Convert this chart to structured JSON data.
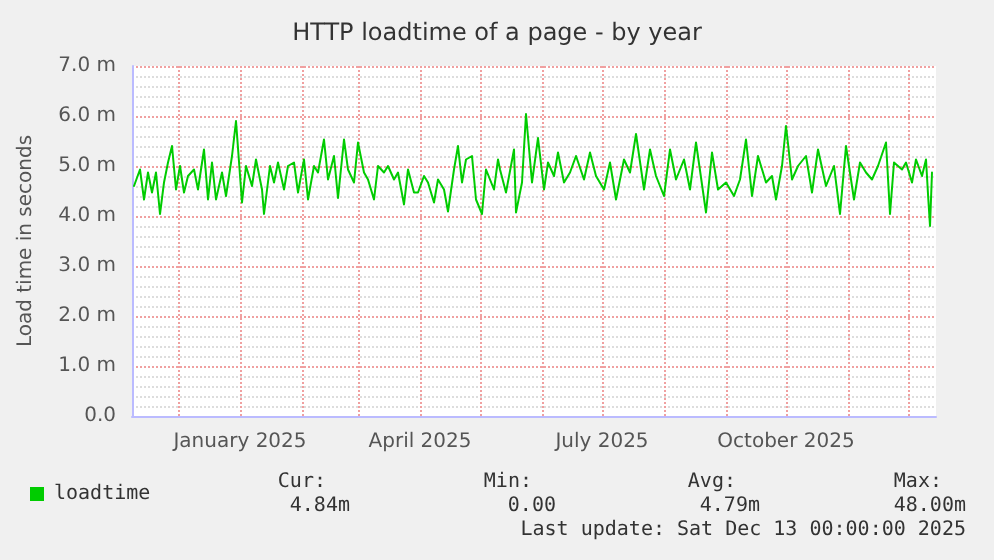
{
  "chart_data": {
    "type": "line",
    "title": "HTTP loadtime of a page - by year",
    "ylabel": "Load time in seconds",
    "xlim": [
      "2024-11-08",
      "2025-12-15"
    ],
    "xticks": [
      {
        "value": "2024-12-01",
        "label": null
      },
      {
        "value": "2025-01-01",
        "label": "January 2025"
      },
      {
        "value": "2025-02-01",
        "label": null
      },
      {
        "value": "2025-03-01",
        "label": null
      },
      {
        "value": "2025-04-01",
        "label": "April 2025"
      },
      {
        "value": "2025-05-01",
        "label": null
      },
      {
        "value": "2025-06-01",
        "label": null
      },
      {
        "value": "2025-07-01",
        "label": "July 2025"
      },
      {
        "value": "2025-08-01",
        "label": null
      },
      {
        "value": "2025-09-01",
        "label": null
      },
      {
        "value": "2025-10-01",
        "label": "October 2025"
      },
      {
        "value": "2025-11-01",
        "label": null
      },
      {
        "value": "2025-12-01",
        "label": null
      }
    ],
    "ylim": [
      0,
      7
    ],
    "yticks": [
      {
        "value": 0,
        "label": "0.0"
      },
      {
        "value": 1,
        "label": "1.0 m"
      },
      {
        "value": 2,
        "label": "2.0 m"
      },
      {
        "value": 3,
        "label": "3.0 m"
      },
      {
        "value": 4,
        "label": "4.0 m"
      },
      {
        "value": 5,
        "label": "5.0 m"
      },
      {
        "value": 6,
        "label": "6.0 m"
      },
      {
        "value": 7,
        "label": "7.0 m"
      }
    ],
    "grid": true,
    "legend": "bottom left",
    "marker": "none",
    "line_style": "solid",
    "annotations": [
      "Cur:",
      "Min:",
      "Avg:",
      "Max:",
      "4.84m",
      "0.00",
      "4.79m",
      "48.00m",
      "Last update: Sat Dec 13 00:00:00 2025"
    ],
    "series": [
      {
        "name": "loadtime",
        "color": "#00cc00",
        "x": [
          "2024-11-09",
          "2024-11-12",
          "2024-11-14",
          "2024-11-16",
          "2024-11-18",
          "2024-11-20",
          "2024-11-22",
          "2024-11-24",
          "2024-11-26",
          "2024-11-28",
          "2024-11-30",
          "2024-12-02",
          "2024-12-04",
          "2024-12-06",
          "2024-12-09",
          "2024-12-11",
          "2024-12-14",
          "2024-12-16",
          "2024-12-18",
          "2024-12-20",
          "2024-12-23",
          "2024-12-25",
          "2024-12-28",
          "2024-12-30",
          "2025-01-02",
          "2025-01-04",
          "2025-01-07",
          "2025-01-09",
          "2025-01-12",
          "2025-01-13",
          "2025-01-16",
          "2025-01-18",
          "2025-01-20",
          "2025-01-23",
          "2025-01-25",
          "2025-01-28",
          "2025-01-30",
          "2025-02-02",
          "2025-02-04",
          "2025-02-07",
          "2025-02-09",
          "2025-02-12",
          "2025-02-14",
          "2025-02-17",
          "2025-02-19",
          "2025-02-22",
          "2025-02-24",
          "2025-02-27",
          "2025-03-01",
          "2025-03-04",
          "2025-03-06",
          "2025-03-09",
          "2025-03-11",
          "2025-03-14",
          "2025-03-16",
          "2025-03-19",
          "2025-03-21",
          "2025-03-24",
          "2025-03-26",
          "2025-03-29",
          "2025-03-31",
          "2025-04-03",
          "2025-04-05",
          "2025-04-08",
          "2025-04-10",
          "2025-04-13",
          "2025-04-15",
          "2025-04-18",
          "2025-04-20",
          "2025-04-22",
          "2025-04-24",
          "2025-04-27",
          "2025-04-29",
          "2025-05-02",
          "2025-05-04",
          "2025-05-08",
          "2025-05-10",
          "2025-05-11",
          "2025-05-14",
          "2025-05-18",
          "2025-05-19",
          "2025-05-22",
          "2025-05-24",
          "2025-05-27",
          "2025-05-30",
          "2025-06-02",
          "2025-06-04",
          "2025-06-07",
          "2025-06-09",
          "2025-06-12",
          "2025-06-15",
          "2025-06-18",
          "2025-06-22",
          "2025-06-25",
          "2025-06-28",
          "2025-07-02",
          "2025-07-05",
          "2025-07-08",
          "2025-07-12",
          "2025-07-15",
          "2025-07-18",
          "2025-07-22",
          "2025-07-25",
          "2025-07-28",
          "2025-08-01",
          "2025-08-04",
          "2025-08-07",
          "2025-08-11",
          "2025-08-14",
          "2025-08-17",
          "2025-08-22",
          "2025-08-25",
          "2025-08-28",
          "2025-09-01",
          "2025-09-05",
          "2025-09-08",
          "2025-09-11",
          "2025-09-14",
          "2025-09-17",
          "2025-09-21",
          "2025-09-24",
          "2025-09-26",
          "2025-09-29",
          "2025-10-01",
          "2025-10-04",
          "2025-10-07",
          "2025-10-11",
          "2025-10-14",
          "2025-10-17",
          "2025-10-21",
          "2025-10-25",
          "2025-10-28",
          "2025-10-31",
          "2025-11-04",
          "2025-11-07",
          "2025-11-10",
          "2025-11-13",
          "2025-11-16",
          "2025-11-20",
          "2025-11-22",
          "2025-11-24",
          "2025-11-28",
          "2025-11-30",
          "2025-12-03",
          "2025-12-05",
          "2025-12-08",
          "2025-12-10",
          "2025-12-11",
          "2025-12-12",
          "2025-12-13"
        ],
        "values": [
          4.6,
          4.93,
          4.33,
          4.87,
          4.47,
          4.87,
          4.04,
          4.67,
          5.07,
          5.4,
          4.53,
          5.0,
          4.47,
          4.8,
          4.93,
          4.53,
          5.33,
          4.33,
          5.07,
          4.33,
          4.87,
          4.4,
          5.2,
          5.9,
          4.27,
          5.0,
          4.6,
          5.13,
          4.53,
          4.04,
          5.0,
          4.67,
          5.07,
          4.53,
          5.0,
          5.07,
          4.47,
          5.13,
          4.33,
          5.0,
          4.87,
          5.53,
          4.73,
          5.2,
          4.36,
          5.53,
          4.93,
          4.67,
          5.47,
          4.87,
          4.73,
          4.33,
          5.0,
          4.87,
          5.0,
          4.73,
          4.87,
          4.23,
          4.93,
          4.47,
          4.47,
          4.8,
          4.67,
          4.27,
          4.73,
          4.53,
          4.09,
          4.93,
          5.4,
          4.67,
          5.13,
          5.2,
          4.33,
          4.04,
          4.93,
          4.53,
          5.13,
          4.93,
          4.47,
          5.33,
          4.07,
          4.67,
          6.04,
          4.67,
          5.56,
          4.53,
          5.07,
          4.8,
          5.27,
          4.67,
          4.87,
          5.2,
          4.73,
          5.27,
          4.8,
          4.53,
          5.07,
          4.33,
          5.13,
          4.87,
          5.64,
          4.53,
          5.33,
          4.8,
          4.4,
          5.33,
          4.73,
          5.13,
          4.53,
          5.47,
          4.07,
          5.27,
          4.53,
          4.67,
          4.4,
          4.73,
          5.53,
          4.4,
          5.2,
          4.67,
          4.8,
          4.33,
          5.0,
          5.8,
          4.73,
          5.0,
          5.2,
          4.47,
          5.33,
          4.6,
          5.0,
          4.04,
          5.4,
          4.33,
          5.07,
          4.87,
          4.73,
          5.0,
          5.47,
          4.04,
          5.07,
          4.93,
          5.07,
          4.67,
          5.13,
          4.8,
          5.13,
          4.44,
          3.8,
          4.87
        ]
      }
    ]
  }
}
